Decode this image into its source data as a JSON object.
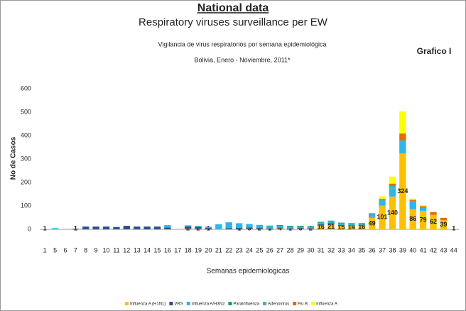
{
  "chart_data": {
    "type": "stacked_bar",
    "title": "National data",
    "subtitle": "Respiratory viruses surveillance per EW",
    "inner_title": [
      "Vigilancia de virus respiratorios por semana epidemiológica",
      "Bolivia, Enero - Noviembre, 2011*"
    ],
    "annotation": "Grafico I",
    "y_label": "No de Casos",
    "x_label": "Semanas epidemiologicas",
    "categories": [
      "1",
      "5",
      "6",
      "7",
      "8",
      "9",
      "10",
      "11",
      "12",
      "13",
      "14",
      "15",
      "16",
      "17",
      "18",
      "19",
      "20",
      "21",
      "22",
      "23",
      "24",
      "25",
      "26",
      "27",
      "28",
      "29",
      "30",
      "31",
      "32",
      "33",
      "34",
      "35",
      "36",
      "37",
      "38",
      "39",
      "40",
      "41",
      "42",
      "43",
      "44"
    ],
    "ylim": [
      0,
      600
    ],
    "yticks": [
      0,
      100,
      200,
      300,
      400,
      500,
      600
    ],
    "grid": false,
    "legend": "bottom",
    "series": [
      {
        "name": "Influenza A (H1N1)",
        "color": "#FFC000",
        "labels": true,
        "values": [
          1,
          null,
          null,
          1,
          null,
          null,
          null,
          null,
          null,
          null,
          null,
          null,
          null,
          null,
          2,
          2,
          1,
          null,
          null,
          1,
          3,
          2,
          1,
          4,
          1,
          3,
          2,
          16,
          21,
          15,
          14,
          16,
          49,
          101,
          140,
          324,
          86,
          79,
          62,
          39,
          1
        ]
      },
      {
        "name": "VRS",
        "color": "#2E4F8F",
        "values": [
          0,
          0,
          0,
          2,
          12,
          12,
          12,
          10,
          15,
          12,
          12,
          12,
          8,
          0,
          10,
          8,
          5,
          0,
          5,
          5,
          5,
          5,
          3,
          3,
          3,
          3,
          3,
          5,
          5,
          3,
          3,
          3,
          0,
          0,
          0,
          0,
          0,
          0,
          0,
          0,
          0
        ]
      },
      {
        "name": "Influenza A/H3N2",
        "color": "#2FB5E8",
        "values": [
          0,
          5,
          0,
          0,
          0,
          0,
          0,
          0,
          0,
          0,
          0,
          0,
          10,
          0,
          5,
          5,
          5,
          22,
          25,
          20,
          15,
          12,
          10,
          8,
          8,
          6,
          6,
          8,
          8,
          5,
          5,
          3,
          5,
          15,
          35,
          55,
          35,
          15,
          0,
          0,
          0
        ]
      },
      {
        "name": "Parainfluenza",
        "color": "#00A651",
        "values": [
          0,
          0,
          0,
          0,
          0,
          0,
          0,
          0,
          0,
          0,
          0,
          0,
          0,
          0,
          0,
          0,
          0,
          0,
          0,
          0,
          0,
          0,
          2,
          3,
          3,
          3,
          3,
          3,
          3,
          3,
          2,
          2,
          0,
          0,
          0,
          0,
          0,
          0,
          0,
          0,
          0
        ]
      },
      {
        "name": "Adenovirus",
        "color": "#4BACC6",
        "values": [
          0,
          0,
          0,
          0,
          0,
          0,
          0,
          0,
          0,
          0,
          0,
          0,
          0,
          0,
          0,
          0,
          0,
          0,
          0,
          0,
          0,
          0,
          0,
          0,
          0,
          0,
          0,
          0,
          0,
          3,
          3,
          3,
          15,
          15,
          10,
          0,
          0,
          0,
          0,
          0,
          0
        ]
      },
      {
        "name": "Flu B",
        "color": "#E36C09",
        "values": [
          0,
          0,
          0,
          0,
          0,
          0,
          0,
          0,
          0,
          0,
          0,
          0,
          0,
          0,
          0,
          0,
          0,
          0,
          0,
          0,
          0,
          0,
          0,
          0,
          0,
          0,
          0,
          0,
          0,
          0,
          0,
          0,
          0,
          0,
          10,
          30,
          5,
          5,
          12,
          10,
          0
        ]
      },
      {
        "name": "Influenza A",
        "color": "#FFFF00",
        "values": [
          0,
          0,
          0,
          0,
          0,
          0,
          0,
          0,
          0,
          0,
          0,
          0,
          0,
          0,
          0,
          0,
          0,
          0,
          0,
          0,
          0,
          0,
          0,
          0,
          0,
          0,
          0,
          0,
          0,
          0,
          0,
          0,
          0,
          10,
          30,
          95,
          5,
          5,
          0,
          0,
          0
        ]
      }
    ]
  }
}
